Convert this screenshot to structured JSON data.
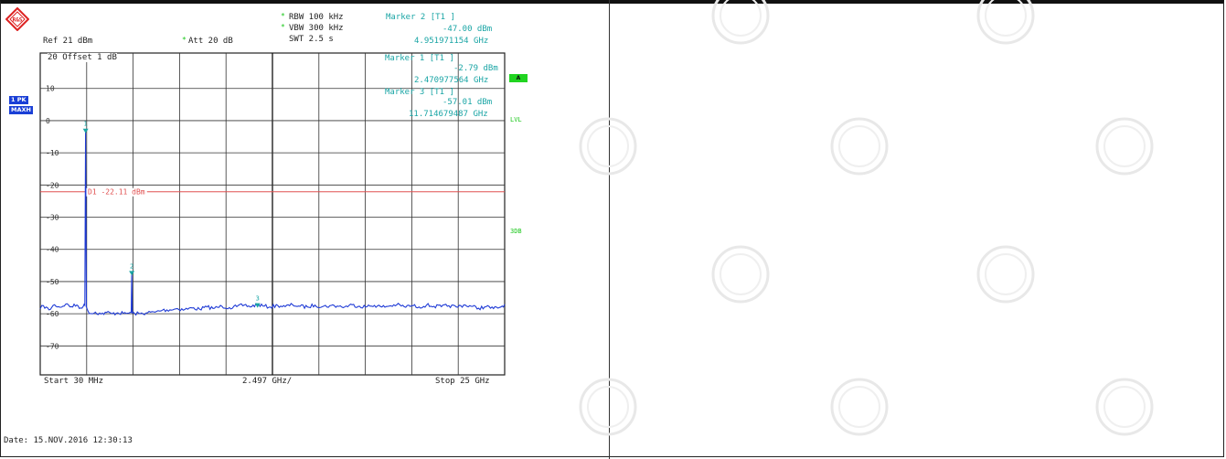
{
  "logo_text": "R&S",
  "header": {
    "rbw": "RBW 100 kHz",
    "vbw": "VBW 300 kHz",
    "swt": "SWT 2.5 s",
    "ref": "Ref  21 dBm",
    "att": "Att  20 dB",
    "offset": "20  Offset   1 dB",
    "marker2_title": "Marker 2 [T1 ]",
    "marker2_level": "-47.00 dBm",
    "marker2_freq": "4.951971154 GHz"
  },
  "side_labels": {
    "trace": "1 PK",
    "mode": "MAXH",
    "a": "A",
    "lvl": "LVL",
    "db3": "3DB"
  },
  "footer": {
    "start": "Start  30 MHz",
    "span": "2.497 GHz/",
    "stop": "Stop  25 GHz",
    "date": "Date: 15.NOV.2016  12:30:13"
  },
  "colors": {
    "trace": "#1f3bd6",
    "display_line": "#e05050",
    "marker": "#1aa5a5",
    "grid": "#222222"
  },
  "chart_data": {
    "type": "line",
    "xlabel": "",
    "ylabel": "",
    "x_unit": "GHz",
    "y_unit": "dBm",
    "xlim": [
      0.03,
      25
    ],
    "ylim": [
      -79,
      21
    ],
    "y_ticks": [
      10,
      0,
      -10,
      -20,
      -30,
      -40,
      -50,
      -60,
      -70
    ],
    "y_tick_labels": [
      "10",
      "0",
      "-10",
      "-20",
      "-30",
      "-40",
      "-50",
      "-60",
      "-70"
    ],
    "grid": true,
    "display_line": {
      "label": "D1  -22.11 dBm",
      "value": -22.11
    },
    "markers": [
      {
        "id": "1",
        "title": "Marker 1 [T1 ]",
        "level": "-2.79 dBm",
        "freq": "2.470977564 GHz",
        "x": 2.470977564,
        "y": -2.79
      },
      {
        "id": "2",
        "title": "Marker 2 [T1 ]",
        "level": "-47.00 dBm",
        "freq": "4.951971154 GHz",
        "x": 4.951971154,
        "y": -47.0
      },
      {
        "id": "3",
        "title": "Marker 3 [T1 ]",
        "level": "-57.01 dBm",
        "freq": "11.714679487 GHz",
        "x": 11.714679487,
        "y": -57.01
      }
    ],
    "series": [
      {
        "x": [
          0.03,
          0.2,
          0.5,
          0.8,
          1.1,
          1.4,
          1.7,
          2.0,
          2.2,
          2.35,
          2.43,
          2.47,
          2.51,
          2.6,
          2.8,
          3.0,
          3.3,
          3.6,
          3.9,
          4.2,
          4.5,
          4.8,
          4.92,
          4.95,
          4.98,
          5.1,
          5.4,
          5.8,
          6.2,
          6.6,
          7.0,
          7.4,
          7.8,
          8.2,
          8.6,
          9.0,
          9.4,
          9.8,
          10.2,
          10.6,
          11.0,
          11.4,
          11.7,
          12.0,
          12.4,
          12.8,
          13.2,
          13.6,
          14.0,
          14.4,
          14.8,
          15.2,
          15.6,
          16.0,
          16.4,
          16.8,
          17.2,
          17.6,
          18.0,
          18.4,
          18.8,
          19.2,
          19.6,
          20.0,
          20.4,
          20.8,
          21.2,
          21.6,
          22.0,
          22.4,
          22.8,
          23.2,
          23.6,
          24.0,
          24.4,
          24.8,
          25.0
        ],
        "y": [
          -58.5,
          -57.5,
          -58.8,
          -57.2,
          -58.0,
          -57.0,
          -57.8,
          -57.3,
          -58.2,
          -57.6,
          -57.4,
          -2.79,
          -57.9,
          -59.2,
          -60.0,
          -59.5,
          -60.1,
          -59.6,
          -60.0,
          -59.7,
          -59.9,
          -59.8,
          -59.6,
          -47.0,
          -59.8,
          -59.9,
          -60.0,
          -59.7,
          -59.5,
          -58.9,
          -58.8,
          -58.4,
          -58.7,
          -58.2,
          -58.6,
          -57.9,
          -58.3,
          -57.7,
          -58.1,
          -57.8,
          -57.3,
          -57.8,
          -57.01,
          -57.6,
          -57.9,
          -57.4,
          -57.8,
          -57.2,
          -57.7,
          -57.9,
          -57.3,
          -57.8,
          -57.5,
          -57.6,
          -57.9,
          -57.2,
          -57.7,
          -57.8,
          -57.4,
          -57.9,
          -57.6,
          -57.2,
          -57.8,
          -57.5,
          -57.9,
          -57.3,
          -57.7,
          -57.8,
          -57.5,
          -57.9,
          -57.3,
          -57.7,
          -58.3,
          -57.8,
          -58.4,
          -57.9,
          -57.1
        ]
      }
    ]
  }
}
